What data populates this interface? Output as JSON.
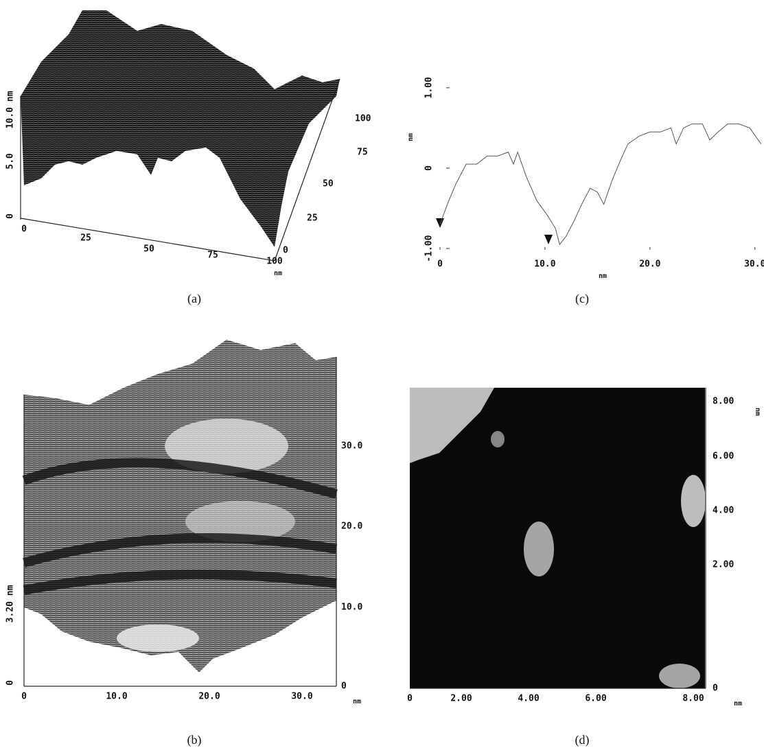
{
  "panel_a": {
    "caption": "(a)",
    "z_ticks": [
      "0",
      "5.0",
      "10.0 nm"
    ],
    "x_ticks": [
      "0",
      "25",
      "50",
      "75",
      "100"
    ],
    "y_ticks": [
      "0",
      "25",
      "50",
      "75",
      "100"
    ],
    "x_unit": "nm"
  },
  "panel_b": {
    "caption": "(b)",
    "z_ticks": [
      "0",
      "3.20 nm"
    ],
    "x_ticks": [
      "0",
      "10.0",
      "20.0",
      "30.0"
    ],
    "y_ticks": [
      "0",
      "10.0",
      "20.0",
      "30.0"
    ],
    "x_unit": "nm"
  },
  "panel_c": {
    "caption": "(c)",
    "x_label": "nm",
    "y_label": "nm",
    "x": [
      0,
      0.7,
      1.5,
      2.5,
      3.5,
      4.5,
      5.5,
      6.5,
      7.0,
      7.4,
      8.2,
      9.2,
      10.3,
      11.0,
      11.4,
      12.0,
      12.8,
      13.5,
      14.3,
      15.0,
      15.6,
      16.4,
      17.2,
      17.9,
      19.0,
      20.0,
      21.0,
      22.0,
      22.5,
      23.2,
      24.0,
      25.0,
      25.7,
      26.5,
      27.4,
      28.5,
      29.5,
      30.6
    ],
    "values": [
      -0.7,
      -0.45,
      -0.2,
      0.05,
      0.05,
      0.15,
      0.15,
      0.2,
      0.05,
      0.2,
      -0.1,
      -0.4,
      -0.6,
      -0.75,
      -0.95,
      -0.85,
      -0.65,
      -0.45,
      -0.25,
      -0.3,
      -0.45,
      -0.15,
      0.1,
      0.3,
      0.4,
      0.45,
      0.45,
      0.5,
      0.3,
      0.5,
      0.55,
      0.55,
      0.35,
      0.45,
      0.55,
      0.55,
      0.5,
      0.3
    ],
    "xlim": [
      0,
      30.8
    ],
    "ylim": [
      -1.05,
      1.05
    ],
    "xticks": [
      0,
      {
        "value": 10,
        "label": "10.0"
      },
      {
        "value": 20,
        "label": "20.0"
      },
      {
        "value": 30,
        "label": "30.0"
      }
    ],
    "yticks": [
      {
        "value": -1,
        "label": "-1.00"
      },
      0,
      {
        "value": 1,
        "label": "1.00"
      }
    ]
  },
  "panel_d": {
    "caption": "(d)",
    "x_ticks": [
      "0",
      "2.00",
      "4.00",
      "6.00",
      "8.00"
    ],
    "y_ticks": [
      "0",
      "2.00",
      "4.00",
      "6.00",
      "8.00"
    ],
    "x_unit": "nm",
    "y_unit": "nm"
  }
}
